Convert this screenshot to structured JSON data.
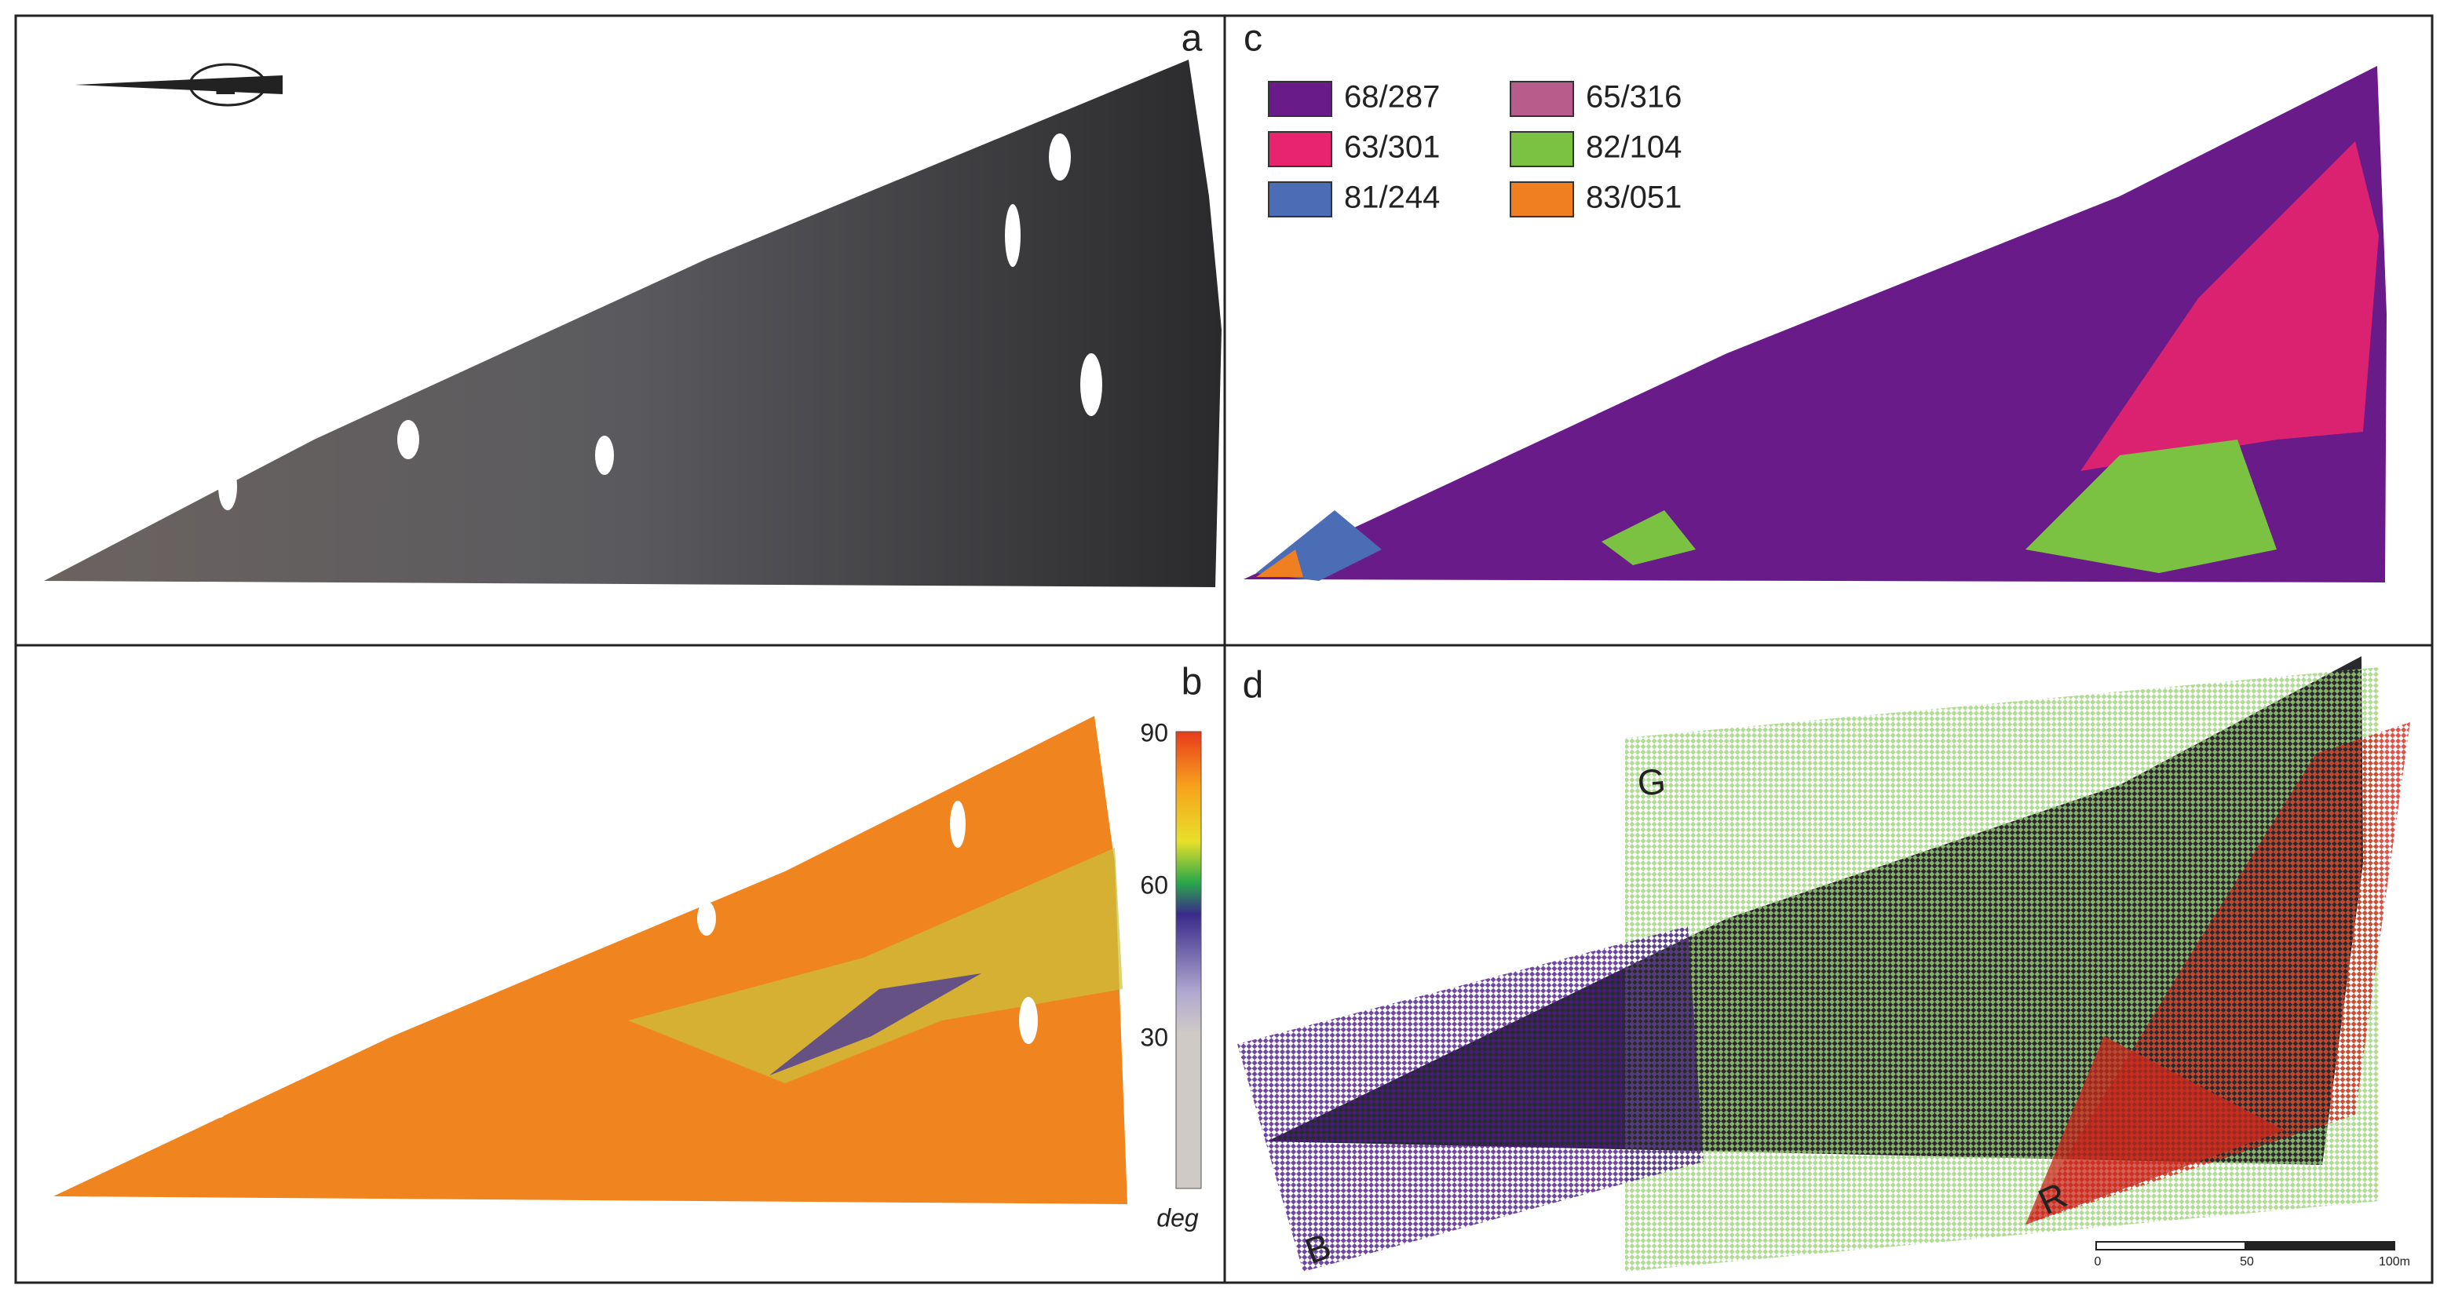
{
  "panels": {
    "a": {
      "label": "a",
      "compass": "N"
    },
    "b": {
      "label": "b",
      "colorbar": {
        "ticks": [
          "90",
          "60",
          "30"
        ],
        "unit": "deg"
      }
    },
    "c": {
      "label": "c",
      "legend": [
        {
          "name": "68/287",
          "color": "#6a1b8a"
        },
        {
          "name": "65/316",
          "color": "#b85c8c"
        },
        {
          "name": "63/301",
          "color": "#e8246e"
        },
        {
          "name": "82/104",
          "color": "#7cc242"
        },
        {
          "name": "81/244",
          "color": "#4a6db5"
        },
        {
          "name": "83/051",
          "color": "#f07f22"
        }
      ]
    },
    "d": {
      "label": "d",
      "regions": [
        "G",
        "B",
        "R"
      ],
      "scale_bar": [
        "0",
        "50",
        "100m"
      ]
    }
  }
}
